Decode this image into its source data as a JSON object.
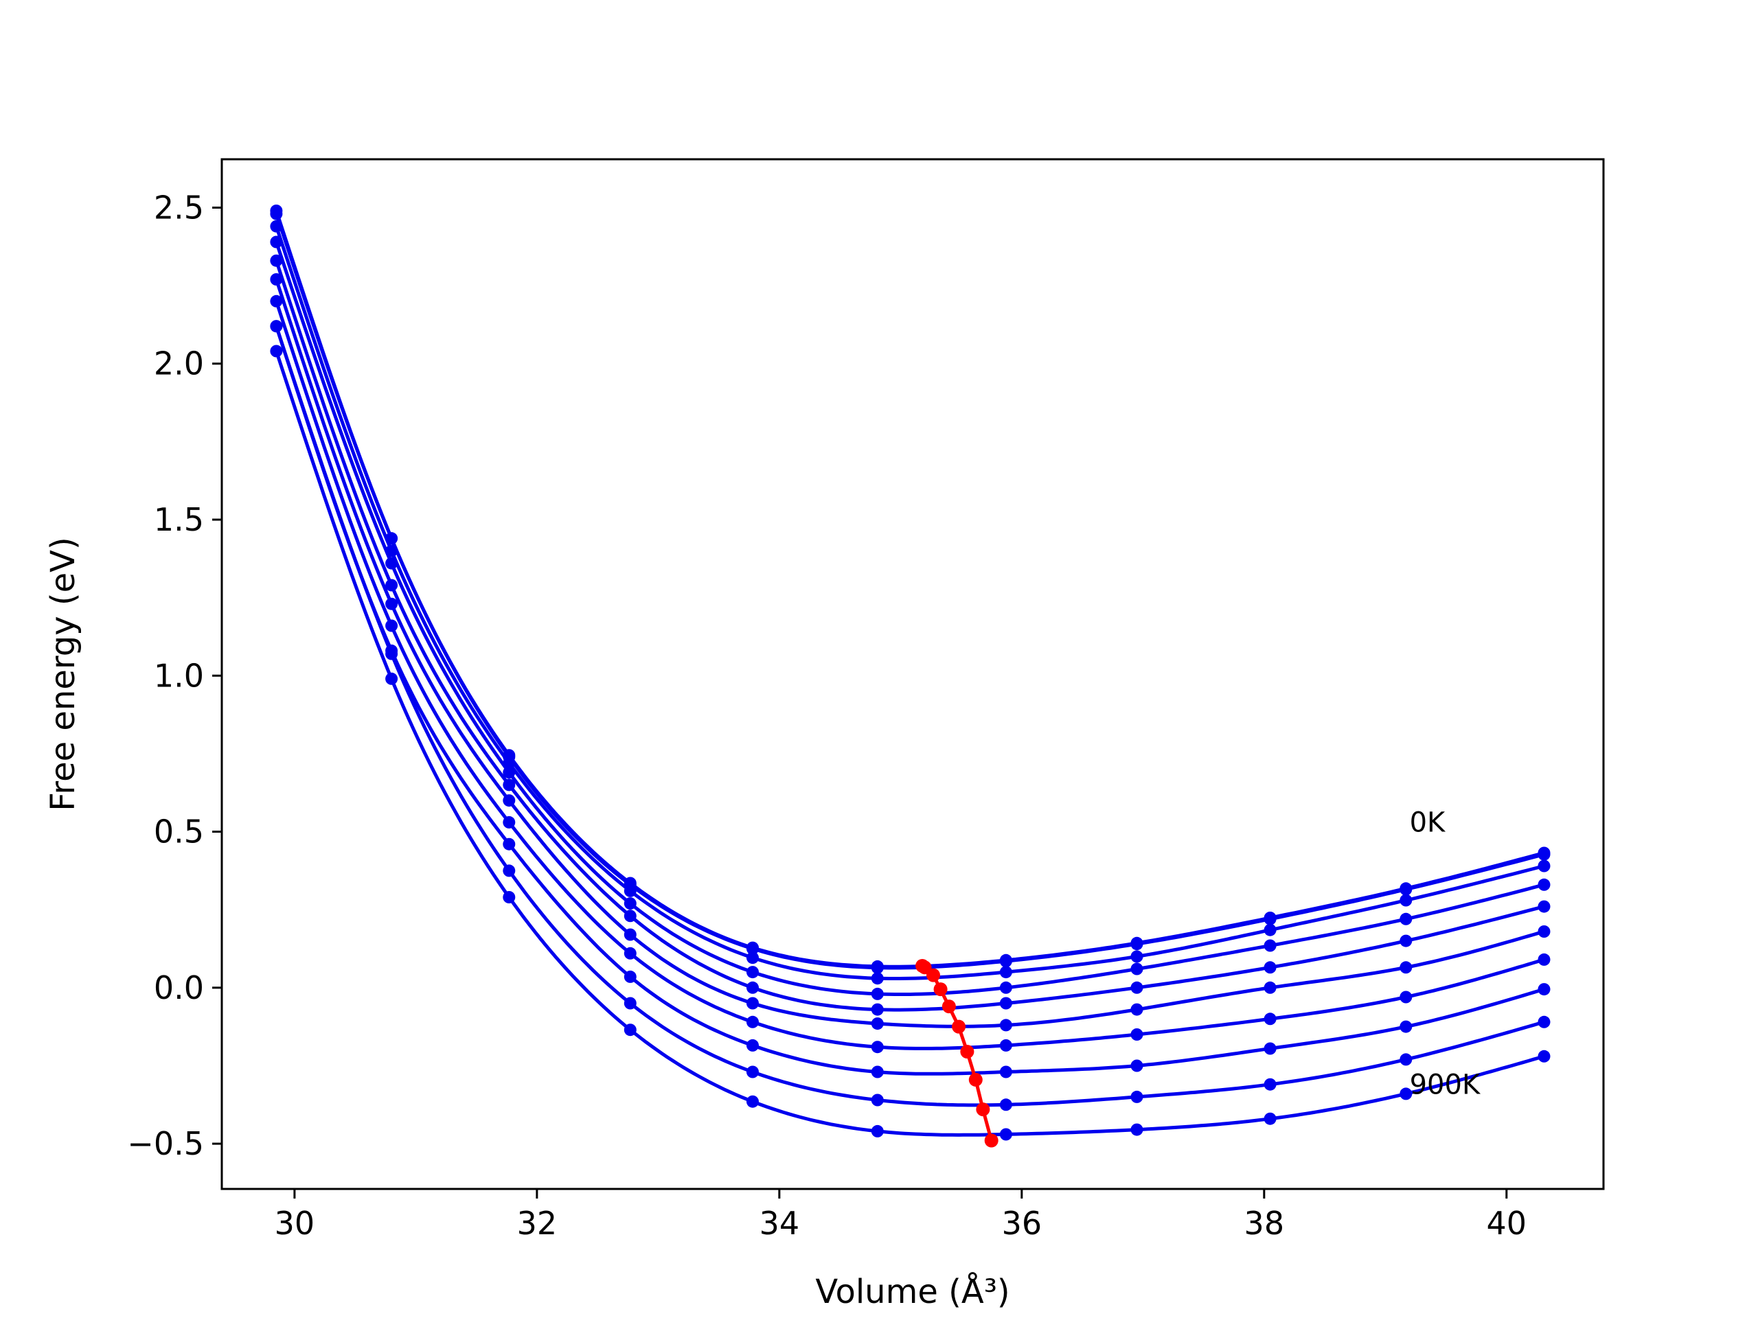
{
  "chart_data": {
    "type": "line",
    "title": "",
    "xlabel": "Volume (Å³)",
    "ylabel": "Free energy (eV)",
    "xlim": [
      29.4,
      40.8
    ],
    "ylim": [
      -0.645,
      2.655
    ],
    "xticks": [
      30,
      32,
      34,
      36,
      38,
      40
    ],
    "xtick_labels": [
      "30",
      "32",
      "34",
      "36",
      "38",
      "40"
    ],
    "yticks": [
      -0.5,
      0.0,
      0.5,
      1.0,
      1.5,
      2.0,
      2.5
    ],
    "ytick_labels": [
      "−0.5",
      "0.0",
      "0.5",
      "1.0",
      "1.5",
      "2.0",
      "2.5"
    ],
    "grid": false,
    "legend": "none",
    "colors": {
      "curves": "#0000ee",
      "minimum_line": "#ff0000"
    },
    "annotations": [
      {
        "text": "0K",
        "x": 39.2,
        "y": 0.5
      },
      {
        "text": "900K",
        "x": 39.2,
        "y": -0.34
      }
    ],
    "volumes": [
      29.85,
      30.8,
      31.77,
      32.77,
      33.78,
      34.81,
      35.87,
      36.95,
      38.05,
      39.17,
      40.31
    ],
    "series": [
      {
        "values": [
          2.49,
          1.44,
          0.745,
          0.335,
          0.128,
          0.068,
          0.088,
          0.143,
          0.224,
          0.318,
          0.432
        ]
      },
      {
        "values": [
          2.48,
          1.44,
          0.74,
          0.33,
          0.125,
          0.064,
          0.085,
          0.14,
          0.22,
          0.315,
          0.427
        ]
      },
      {
        "values": [
          2.44,
          1.4,
          0.72,
          0.31,
          0.096,
          0.03,
          0.05,
          0.1,
          0.185,
          0.28,
          0.39
        ]
      },
      {
        "values": [
          2.39,
          1.36,
          0.69,
          0.27,
          0.05,
          -0.02,
          0.0,
          0.06,
          0.135,
          0.22,
          0.33
        ]
      },
      {
        "values": [
          2.33,
          1.29,
          0.65,
          0.23,
          0.0,
          -0.07,
          -0.05,
          0.0,
          0.065,
          0.15,
          0.26
        ]
      },
      {
        "values": [
          2.27,
          1.23,
          0.6,
          0.17,
          -0.05,
          -0.115,
          -0.12,
          -0.07,
          0.0,
          0.065,
          0.18
        ]
      },
      {
        "values": [
          2.2,
          1.16,
          0.53,
          0.11,
          -0.11,
          -0.19,
          -0.185,
          -0.15,
          -0.1,
          -0.03,
          0.09
        ]
      },
      {
        "values": [
          2.12,
          1.08,
          0.46,
          0.035,
          -0.185,
          -0.27,
          -0.27,
          -0.25,
          -0.195,
          -0.125,
          -0.005
        ]
      },
      {
        "values": [
          2.12,
          1.07,
          0.375,
          -0.05,
          -0.27,
          -0.36,
          -0.375,
          -0.35,
          -0.31,
          -0.23,
          -0.11
        ]
      },
      {
        "values": [
          2.04,
          0.99,
          0.29,
          -0.135,
          -0.365,
          -0.46,
          -0.47,
          -0.455,
          -0.42,
          -0.34,
          -0.22
        ]
      }
    ],
    "minima": {
      "x": [
        35.18,
        35.2,
        35.27,
        35.33,
        35.4,
        35.48,
        35.55,
        35.62,
        35.68,
        35.75
      ],
      "y": [
        0.07,
        0.065,
        0.04,
        -0.005,
        -0.06,
        -0.125,
        -0.205,
        -0.295,
        -0.39,
        -0.49
      ]
    }
  }
}
